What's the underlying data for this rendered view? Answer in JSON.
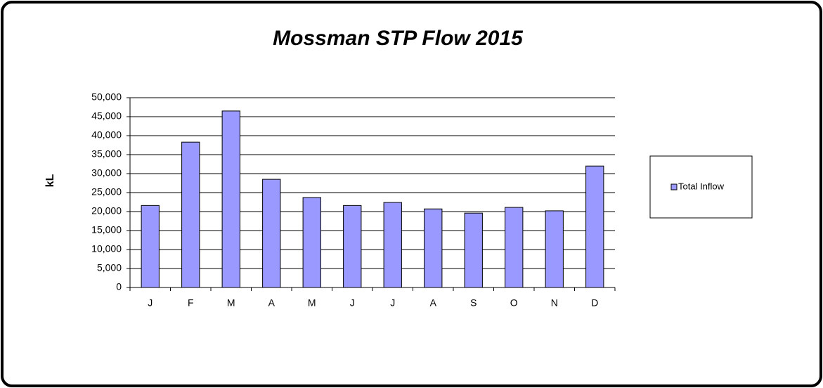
{
  "chart_data": {
    "type": "bar",
    "title": "Mossman  STP Flow 2015",
    "y_label": "kL",
    "categories": [
      "J",
      "F",
      "M",
      "A",
      "M",
      "J",
      "J",
      "A",
      "S",
      "O",
      "N",
      "D"
    ],
    "series": [
      {
        "name": "Total Inflow",
        "color": "#9999ff",
        "values": [
          21600,
          38300,
          46500,
          28500,
          23700,
          21600,
          22400,
          20700,
          19600,
          21100,
          20200,
          32000
        ]
      }
    ],
    "ylim": [
      0,
      50000
    ],
    "yticks": [
      0,
      {
        "value": 5000,
        "label": "5,000"
      },
      {
        "value": 10000,
        "label": "10,000"
      },
      {
        "value": 15000,
        "label": "15,000"
      },
      {
        "value": 20000,
        "label": "20,000"
      },
      {
        "value": 25000,
        "label": "25,000"
      },
      {
        "value": 30000,
        "label": "30,000"
      },
      {
        "value": 35000,
        "label": "35,000"
      },
      {
        "value": 40000,
        "label": "40,000"
      },
      {
        "value": 45000,
        "label": "45,000"
      },
      {
        "value": 50000,
        "label": "50,000"
      }
    ],
    "grid": true,
    "legend": "right"
  }
}
